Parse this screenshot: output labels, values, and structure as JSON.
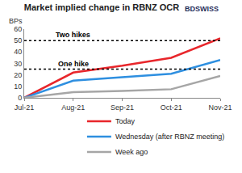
{
  "chart_data": {
    "type": "line",
    "title": "Market implied change in RBNZ OCR",
    "y_label": "BPs",
    "logo": "BDSWISS",
    "categories": [
      "Jul-21",
      "Aug-21",
      "Sep-21",
      "Oct-21",
      "Nov-21"
    ],
    "series": [
      {
        "name": "Today",
        "color": "#e8262b",
        "values": [
          0,
          22,
          28,
          35,
          52
        ]
      },
      {
        "name": "Wednesday (after RBNZ meeting)",
        "color": "#2e8fe0",
        "values": [
          0,
          15,
          18,
          21,
          33
        ]
      },
      {
        "name": "Week ago",
        "color": "#a6a6a6",
        "values": [
          0,
          5,
          6,
          7.5,
          19
        ]
      }
    ],
    "reference_lines": [
      {
        "value": 50,
        "label": "Two hikes",
        "line_style": "dotted"
      },
      {
        "value": 25,
        "label": "One hike",
        "line_style": "dotted"
      }
    ],
    "ylim": [
      0,
      60
    ],
    "yticks": [
      0,
      10,
      20,
      30,
      40,
      50,
      60
    ],
    "grid": false,
    "legend": "bottom"
  }
}
